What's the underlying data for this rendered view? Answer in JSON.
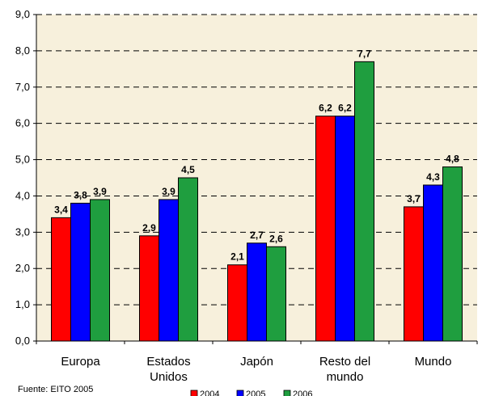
{
  "chart_data": {
    "type": "bar",
    "categories": [
      [
        "Europa"
      ],
      [
        "Estados",
        "Unidos"
      ],
      [
        "Japón"
      ],
      [
        "Resto del",
        "mundo"
      ],
      [
        "Mundo"
      ]
    ],
    "series": [
      {
        "name": "2004",
        "values": [
          3.4,
          2.9,
          2.1,
          6.2,
          3.7
        ],
        "color": "#ff0000"
      },
      {
        "name": "2005",
        "values": [
          3.8,
          3.9,
          2.7,
          6.2,
          4.3
        ],
        "color": "#0000ff"
      },
      {
        "name": "2006",
        "values": [
          3.9,
          4.5,
          2.6,
          7.7,
          4.8
        ],
        "color": "#1f9e3f"
      }
    ],
    "data_labels": [
      [
        "3,4",
        "2,9",
        "2,1",
        "6,2",
        "3,7"
      ],
      [
        "3,8",
        "3,9",
        "2,7",
        "6,2",
        "4,3"
      ],
      [
        "3,9",
        "4,5",
        "2,6",
        "7,7",
        "4,8"
      ]
    ],
    "y_ticks": [
      "0,0",
      "1,0",
      "2,0",
      "3,0",
      "4,0",
      "5,0",
      "6,0",
      "7,0",
      "8,0",
      "9,0"
    ],
    "ylim": [
      0,
      9
    ],
    "grid": true,
    "legend_position": "bottom",
    "plot_background": "#f7f0dc",
    "source": "Fuente: EITO 2005"
  }
}
